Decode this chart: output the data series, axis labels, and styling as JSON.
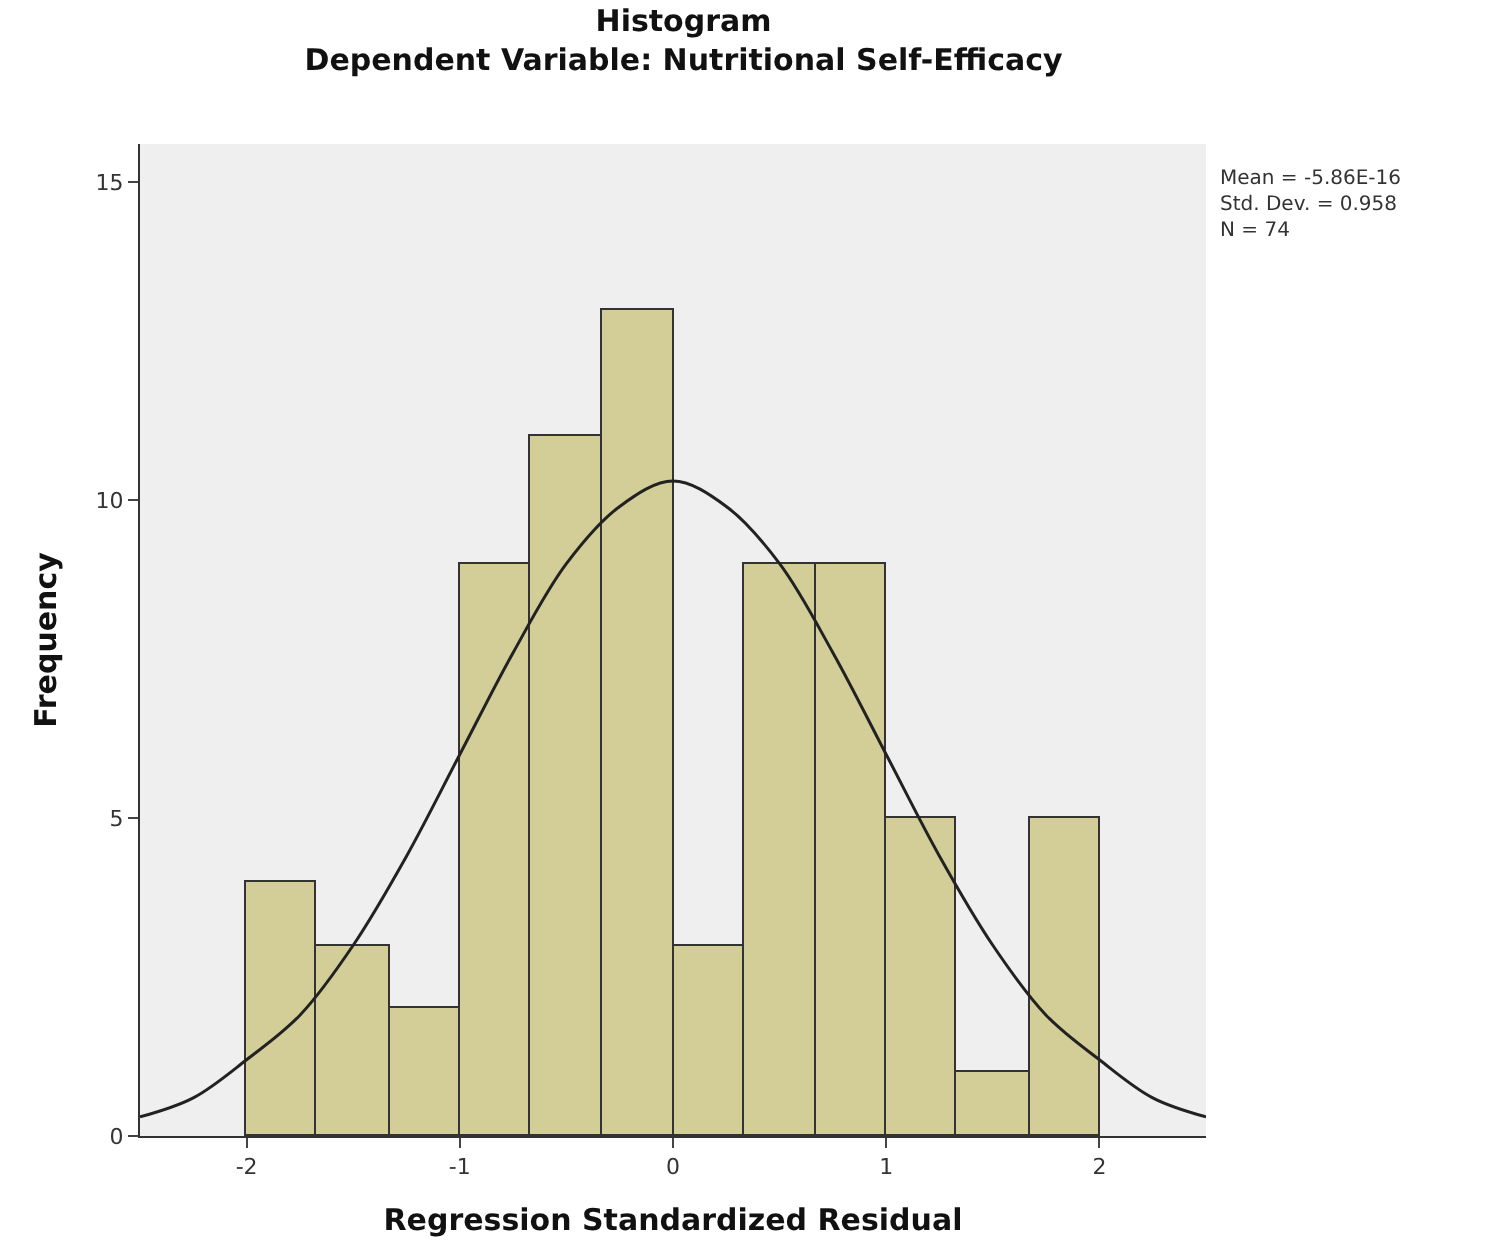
{
  "chart_data": {
    "type": "histogram",
    "title": "Histogram",
    "subtitle": "Dependent Variable: Nutritional Self-Efficacy",
    "xlabel": "Regression Standardized Residual",
    "ylabel": "Frequency",
    "bins": [
      -2,
      -1.67,
      -1.33,
      -1,
      -0.67,
      -0.33,
      0,
      0.33,
      0.67,
      1,
      1.33,
      1.67,
      2
    ],
    "values": [
      4,
      3,
      2,
      9,
      11,
      13,
      3,
      9,
      9,
      5,
      1,
      5
    ],
    "color": "#d3ce97",
    "series": [
      {
        "type": "line",
        "color": "#222222",
        "x": [
          -2.5,
          -2.25,
          -2,
          -1.75,
          -1.5,
          -1.25,
          -1,
          -0.75,
          -0.5,
          -0.25,
          0,
          0.25,
          0.5,
          0.75,
          1,
          1.25,
          1.5,
          1.75,
          2,
          2.25,
          2.5
        ],
        "values": [
          0.3,
          0.6,
          1.2,
          1.9,
          3.0,
          4.4,
          6.0,
          7.6,
          9.0,
          9.9,
          10.3,
          9.9,
          9.0,
          7.6,
          6.0,
          4.4,
          3.0,
          1.9,
          1.2,
          0.6,
          0.3
        ]
      }
    ],
    "xlim": [
      -2.5,
      2.5
    ],
    "xticks": [
      -2,
      -1,
      0,
      1,
      2
    ],
    "ylim": [
      0,
      15.6
    ],
    "yticks": [
      0,
      5,
      10,
      15
    ],
    "grid": false,
    "annotations": [
      "Mean = -5.86E-16",
      "Std. Dev. = 0.958",
      "N = 74"
    ]
  }
}
